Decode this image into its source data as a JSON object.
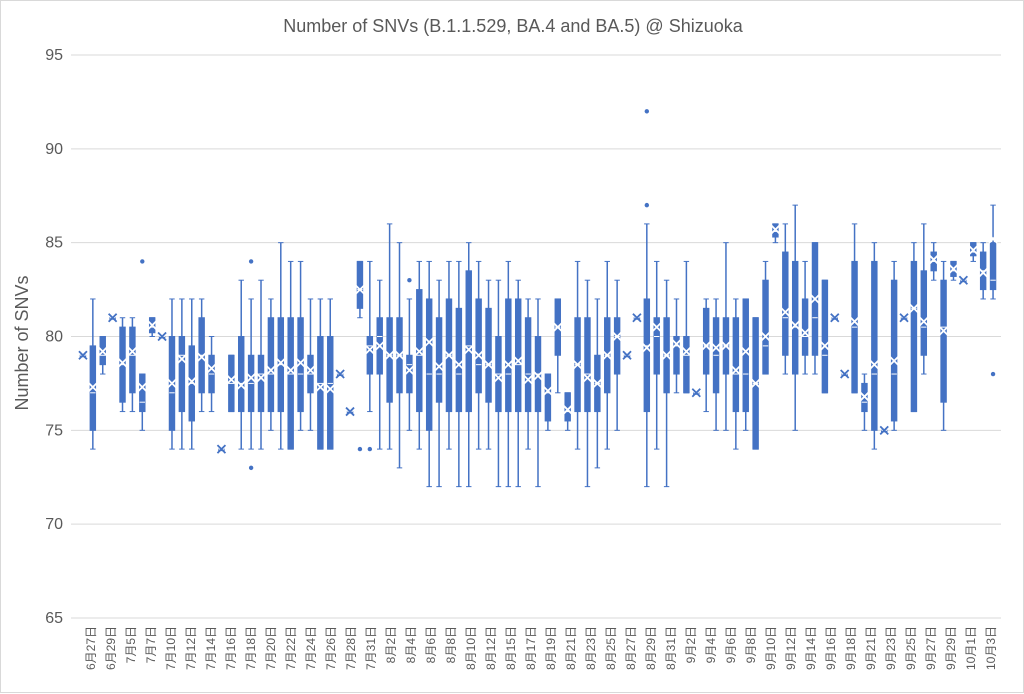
{
  "chart_data": {
    "type": "boxplot",
    "title": "Number of SNVs (B.1.1.529, BA.4 and BA.5) @ Shizuoka",
    "xlabel": "",
    "ylabel": "Number of SNVs",
    "ylim": [
      65,
      95
    ],
    "yticks": [
      65,
      70,
      75,
      80,
      85,
      90,
      95
    ],
    "grid": true,
    "legend": "none",
    "color": "#4472c4",
    "categories": [
      "6月27日",
      "6月29日",
      "7月5日",
      "7月7日",
      "7月10日",
      "7月12日",
      "7月14日",
      "7月16日",
      "7月18日",
      "7月20日",
      "7月22日",
      "7月24日",
      "7月26日",
      "7月28日",
      "7月31日",
      "8月2日",
      "8月4日",
      "8月6日",
      "8月8日",
      "8月10日",
      "8月12日",
      "8月15日",
      "8月17日",
      "8月19日",
      "8月21日",
      "8月23日",
      "8月25日",
      "8月27日",
      "8月29日",
      "8月31日",
      "9月2日",
      "9月4日",
      "9月6日",
      "9月8日",
      "9月10日",
      "9月12日",
      "9月14日",
      "9月16日",
      "9月18日",
      "9月21日",
      "9月23日",
      "9月25日",
      "9月27日",
      "9月29日",
      "10月1日",
      "10月3日"
    ],
    "boxes": [
      {
        "min": 79,
        "q1": 79,
        "median": 79,
        "q3": 79,
        "max": 79,
        "mean": 79,
        "outliers": []
      },
      {
        "min": 74,
        "q1": 75,
        "median": 77,
        "q3": 79.5,
        "max": 82,
        "mean": 77.3,
        "outliers": []
      },
      {
        "min": 78,
        "q1": 78.5,
        "median": 79,
        "q3": 80,
        "max": 80,
        "mean": 79.2,
        "outliers": []
      },
      {
        "min": 81,
        "q1": 81,
        "median": 81,
        "q3": 81,
        "max": 81,
        "mean": 81,
        "outliers": []
      },
      {
        "min": 76,
        "q1": 76.5,
        "median": 78.5,
        "q3": 80.5,
        "max": 81,
        "mean": 78.6,
        "outliers": []
      },
      {
        "min": 76,
        "q1": 77,
        "median": 79,
        "q3": 80.5,
        "max": 81,
        "mean": 79.2,
        "outliers": []
      },
      {
        "min": 75,
        "q1": 76,
        "median": 76.5,
        "q3": 78,
        "max": 78,
        "mean": 77.3,
        "outliers": [
          84
        ]
      },
      {
        "min": 80,
        "q1": 80.2,
        "median": 80.5,
        "q3": 81,
        "max": 81,
        "mean": 80.6,
        "outliers": []
      },
      {
        "min": 80,
        "q1": 80,
        "median": 80,
        "q3": 80,
        "max": 80,
        "mean": 80,
        "outliers": []
      },
      {
        "min": 74,
        "q1": 75,
        "median": 77,
        "q3": 80,
        "max": 82,
        "mean": 77.5,
        "outliers": []
      },
      {
        "min": 74,
        "q1": 76,
        "median": 79,
        "q3": 80,
        "max": 82,
        "mean": 78.8,
        "outliers": []
      },
      {
        "min": 74,
        "q1": 75.5,
        "median": 77.5,
        "q3": 79.5,
        "max": 82,
        "mean": 77.6,
        "outliers": []
      },
      {
        "min": 76,
        "q1": 77,
        "median": 79,
        "q3": 81,
        "max": 82,
        "mean": 78.9,
        "outliers": []
      },
      {
        "min": 76,
        "q1": 77,
        "median": 78,
        "q3": 79,
        "max": 80,
        "mean": 78.3,
        "outliers": []
      },
      {
        "min": 74,
        "q1": 74,
        "median": 74,
        "q3": 74,
        "max": 74,
        "mean": 74,
        "outliers": []
      },
      {
        "min": 76,
        "q1": 76,
        "median": 77.5,
        "q3": 79,
        "max": 79,
        "mean": 77.7,
        "outliers": []
      },
      {
        "min": 74,
        "q1": 76,
        "median": 77.5,
        "q3": 80,
        "max": 83,
        "mean": 77.4,
        "outliers": []
      },
      {
        "min": 74,
        "q1": 76,
        "median": 77.5,
        "q3": 79,
        "max": 82,
        "mean": 77.8,
        "outliers": [
          84,
          73
        ]
      },
      {
        "min": 74,
        "q1": 76,
        "median": 78,
        "q3": 79,
        "max": 83,
        "mean": 77.8,
        "outliers": []
      },
      {
        "min": 75,
        "q1": 76,
        "median": 78,
        "q3": 81,
        "max": 82,
        "mean": 78.2,
        "outliers": []
      },
      {
        "min": 74,
        "q1": 76,
        "median": 78.5,
        "q3": 81,
        "max": 85,
        "mean": 78.6,
        "outliers": []
      },
      {
        "min": 74,
        "q1": 74,
        "median": 78,
        "q3": 81,
        "max": 84,
        "mean": 78.2,
        "outliers": []
      },
      {
        "min": 75,
        "q1": 76,
        "median": 78,
        "q3": 81,
        "max": 84,
        "mean": 78.6,
        "outliers": []
      },
      {
        "min": 75,
        "q1": 77,
        "median": 78,
        "q3": 79,
        "max": 82,
        "mean": 78.2,
        "outliers": []
      },
      {
        "min": 74,
        "q1": 74,
        "median": 77.5,
        "q3": 80,
        "max": 82,
        "mean": 77.3,
        "outliers": []
      },
      {
        "min": 74,
        "q1": 74,
        "median": 77.5,
        "q3": 80,
        "max": 82,
        "mean": 77.2,
        "outliers": []
      },
      {
        "min": 78,
        "q1": 78,
        "median": 78,
        "q3": 78,
        "max": 78,
        "mean": 78,
        "outliers": []
      },
      {
        "min": 76,
        "q1": 76,
        "median": 76,
        "q3": 76,
        "max": 76,
        "mean": 76,
        "outliers": []
      },
      {
        "min": 81,
        "q1": 81.5,
        "median": 82.5,
        "q3": 84,
        "max": 84,
        "mean": 82.5,
        "outliers": [
          74
        ]
      },
      {
        "min": 76,
        "q1": 78,
        "median": 79.5,
        "q3": 80,
        "max": 84,
        "mean": 79.3,
        "outliers": [
          74
        ]
      },
      {
        "min": 74,
        "q1": 78,
        "median": 80,
        "q3": 81,
        "max": 83,
        "mean": 79.5,
        "outliers": []
      },
      {
        "min": 74,
        "q1": 76.5,
        "median": 79,
        "q3": 81,
        "max": 86,
        "mean": 79,
        "outliers": []
      },
      {
        "min": 73,
        "q1": 77,
        "median": 79,
        "q3": 81,
        "max": 85,
        "mean": 79,
        "outliers": []
      },
      {
        "min": 75,
        "q1": 77,
        "median": 78.5,
        "q3": 79,
        "max": 82,
        "mean": 78.2,
        "outliers": [
          83
        ]
      },
      {
        "min": 74,
        "q1": 76,
        "median": 79,
        "q3": 82.5,
        "max": 84,
        "mean": 79.2,
        "outliers": []
      },
      {
        "min": 72,
        "q1": 75,
        "median": 78,
        "q3": 82,
        "max": 84,
        "mean": 79.7,
        "outliers": []
      },
      {
        "min": 72,
        "q1": 76.5,
        "median": 78,
        "q3": 81,
        "max": 83,
        "mean": 78.4,
        "outliers": []
      },
      {
        "min": 74,
        "q1": 76,
        "median": 79,
        "q3": 82,
        "max": 84,
        "mean": 79,
        "outliers": []
      },
      {
        "min": 72,
        "q1": 76,
        "median": 78,
        "q3": 81.5,
        "max": 84,
        "mean": 78.5,
        "outliers": []
      },
      {
        "min": 72,
        "q1": 76,
        "median": 79.5,
        "q3": 83.5,
        "max": 85,
        "mean": 79.3,
        "outliers": []
      },
      {
        "min": 74,
        "q1": 77,
        "median": 78.5,
        "q3": 82,
        "max": 84,
        "mean": 79,
        "outliers": []
      },
      {
        "min": 74,
        "q1": 76.5,
        "median": 78.5,
        "q3": 81.5,
        "max": 83,
        "mean": 78.5,
        "outliers": []
      },
      {
        "min": 72,
        "q1": 76,
        "median": 78,
        "q3": 80,
        "max": 83,
        "mean": 77.8,
        "outliers": []
      },
      {
        "min": 72,
        "q1": 76,
        "median": 78,
        "q3": 82,
        "max": 84,
        "mean": 78.5,
        "outliers": []
      },
      {
        "min": 72,
        "q1": 76,
        "median": 78.5,
        "q3": 82,
        "max": 83,
        "mean": 78.7,
        "outliers": []
      },
      {
        "min": 74,
        "q1": 76,
        "median": 78,
        "q3": 81,
        "max": 82,
        "mean": 77.7,
        "outliers": []
      },
      {
        "min": 72,
        "q1": 76,
        "median": 78,
        "q3": 80,
        "max": 82,
        "mean": 77.9,
        "outliers": []
      },
      {
        "min": 75,
        "q1": 75.5,
        "median": 77,
        "q3": 78,
        "max": 78,
        "mean": 77.1,
        "outliers": []
      },
      {
        "min": 77,
        "q1": 79,
        "median": 80.5,
        "q3": 82,
        "max": 82,
        "mean": 80.5,
        "outliers": []
      },
      {
        "min": 75,
        "q1": 75.5,
        "median": 76,
        "q3": 77,
        "max": 77,
        "mean": 76.1,
        "outliers": []
      },
      {
        "min": 74,
        "q1": 76,
        "median": 78.5,
        "q3": 81,
        "max": 84,
        "mean": 78.5,
        "outliers": []
      },
      {
        "min": 72,
        "q1": 76,
        "median": 78,
        "q3": 81,
        "max": 83,
        "mean": 77.8,
        "outliers": []
      },
      {
        "min": 73,
        "q1": 76,
        "median": 77.5,
        "q3": 79,
        "max": 82,
        "mean": 77.5,
        "outliers": []
      },
      {
        "min": 74,
        "q1": 77,
        "median": 79,
        "q3": 81,
        "max": 84,
        "mean": 79,
        "outliers": []
      },
      {
        "min": 75,
        "q1": 78,
        "median": 80,
        "q3": 81,
        "max": 83,
        "mean": 80,
        "outliers": []
      },
      {
        "min": 79,
        "q1": 79,
        "median": 79,
        "q3": 79,
        "max": 79,
        "mean": 79,
        "outliers": []
      },
      {
        "min": 81,
        "q1": 81,
        "median": 81,
        "q3": 81,
        "max": 81,
        "mean": 81,
        "outliers": []
      },
      {
        "min": 72,
        "q1": 76,
        "median": 79.5,
        "q3": 82,
        "max": 86,
        "mean": 79.4,
        "outliers": [
          92,
          87
        ]
      },
      {
        "min": 74,
        "q1": 78,
        "median": 80,
        "q3": 81,
        "max": 84,
        "mean": 80.5,
        "outliers": []
      },
      {
        "min": 72,
        "q1": 77,
        "median": 79,
        "q3": 81,
        "max": 83,
        "mean": 79,
        "outliers": []
      },
      {
        "min": 77,
        "q1": 78,
        "median": 79.5,
        "q3": 80,
        "max": 82,
        "mean": 79.6,
        "outliers": []
      },
      {
        "min": 77,
        "q1": 77,
        "median": 79,
        "q3": 80,
        "max": 84,
        "mean": 79.2,
        "outliers": []
      },
      {
        "min": 77,
        "q1": 77,
        "median": 77,
        "q3": 77,
        "max": 77,
        "mean": 77,
        "outliers": []
      },
      {
        "min": 76,
        "q1": 78,
        "median": 79.5,
        "q3": 81.5,
        "max": 82,
        "mean": 79.5,
        "outliers": []
      },
      {
        "min": 75,
        "q1": 77,
        "median": 79,
        "q3": 81,
        "max": 82,
        "mean": 79.4,
        "outliers": []
      },
      {
        "min": 75,
        "q1": 78,
        "median": 79.5,
        "q3": 81,
        "max": 85,
        "mean": 79.5,
        "outliers": []
      },
      {
        "min": 74,
        "q1": 76,
        "median": 78,
        "q3": 81,
        "max": 82,
        "mean": 78.2,
        "outliers": []
      },
      {
        "min": 75,
        "q1": 76,
        "median": 78,
        "q3": 82,
        "max": 82,
        "mean": 79.2,
        "outliers": []
      },
      {
        "min": 74,
        "q1": 74,
        "median": 77.5,
        "q3": 81,
        "max": 81,
        "mean": 77.5,
        "outliers": []
      },
      {
        "min": 78,
        "q1": 78,
        "median": 79.5,
        "q3": 83,
        "max": 84,
        "mean": 80,
        "outliers": []
      },
      {
        "min": 85,
        "q1": 85.3,
        "median": 85.6,
        "q3": 86,
        "max": 86,
        "mean": 85.7,
        "outliers": []
      },
      {
        "min": 78,
        "q1": 79,
        "median": 81,
        "q3": 84.5,
        "max": 86,
        "mean": 81.3,
        "outliers": []
      },
      {
        "min": 75,
        "q1": 78,
        "median": 80.5,
        "q3": 84,
        "max": 87,
        "mean": 80.6,
        "outliers": []
      },
      {
        "min": 78,
        "q1": 79,
        "median": 80,
        "q3": 82,
        "max": 84,
        "mean": 80.2,
        "outliers": []
      },
      {
        "min": 78,
        "q1": 79,
        "median": 81,
        "q3": 85,
        "max": 85,
        "mean": 82,
        "outliers": []
      },
      {
        "min": 77,
        "q1": 77,
        "median": 79,
        "q3": 83,
        "max": 83,
        "mean": 79.5,
        "outliers": []
      },
      {
        "min": 81,
        "q1": 81,
        "median": 81,
        "q3": 81,
        "max": 81,
        "mean": 81,
        "outliers": []
      },
      {
        "min": 78,
        "q1": 78,
        "median": 78,
        "q3": 78,
        "max": 78,
        "mean": 78,
        "outliers": []
      },
      {
        "min": 77,
        "q1": 77,
        "median": 80.5,
        "q3": 84,
        "max": 86,
        "mean": 80.8,
        "outliers": []
      },
      {
        "min": 75,
        "q1": 76,
        "median": 76.5,
        "q3": 77.5,
        "max": 78,
        "mean": 76.8,
        "outliers": []
      },
      {
        "min": 74,
        "q1": 75,
        "median": 78,
        "q3": 84,
        "max": 85,
        "mean": 78.5,
        "outliers": []
      },
      {
        "min": 75,
        "q1": 75,
        "median": 75,
        "q3": 75,
        "max": 75,
        "mean": 75,
        "outliers": []
      },
      {
        "min": 75,
        "q1": 75.5,
        "median": 78,
        "q3": 83,
        "max": 84,
        "mean": 78.7,
        "outliers": []
      },
      {
        "min": 81,
        "q1": 81,
        "median": 81,
        "q3": 81,
        "max": 81,
        "mean": 81,
        "outliers": []
      },
      {
        "min": 76,
        "q1": 76,
        "median": 81.5,
        "q3": 84,
        "max": 85,
        "mean": 81.5,
        "outliers": []
      },
      {
        "min": 78,
        "q1": 79,
        "median": 80.5,
        "q3": 83.5,
        "max": 86,
        "mean": 80.8,
        "outliers": []
      },
      {
        "min": 83,
        "q1": 83.5,
        "median": 84,
        "q3": 84.5,
        "max": 85,
        "mean": 84.1,
        "outliers": []
      },
      {
        "min": 75,
        "q1": 76.5,
        "median": 80.5,
        "q3": 83,
        "max": 84,
        "mean": 80.3,
        "outliers": []
      },
      {
        "min": 83,
        "q1": 83.2,
        "median": 83.5,
        "q3": 84,
        "max": 84,
        "mean": 83.6,
        "outliers": []
      },
      {
        "min": 83,
        "q1": 83,
        "median": 83,
        "q3": 83,
        "max": 83,
        "mean": 83,
        "outliers": []
      },
      {
        "min": 84,
        "q1": 84.3,
        "median": 84.5,
        "q3": 85,
        "max": 85,
        "mean": 84.6,
        "outliers": []
      },
      {
        "min": 82,
        "q1": 82.5,
        "median": 83.5,
        "q3": 84.5,
        "max": 85,
        "mean": 83.4,
        "outliers": []
      },
      {
        "min": 82,
        "q1": 82.5,
        "median": 83,
        "q3": 85,
        "max": 87,
        "mean": 85.2,
        "outliers": [
          78
        ]
      }
    ]
  }
}
